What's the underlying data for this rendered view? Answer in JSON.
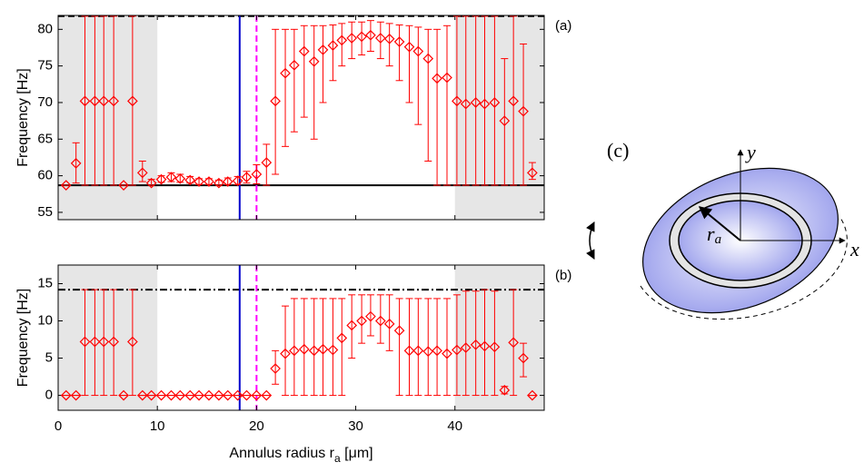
{
  "chart_data": [
    {
      "type": "errorbar",
      "ylabel": "Frequency [Hz]",
      "annotation": "(a)",
      "color": "#ff0000",
      "x": [
        0.8,
        1.8,
        2.7,
        3.7,
        4.6,
        5.6,
        6.6,
        7.5,
        8.5,
        9.4,
        10.4,
        11.4,
        12.3,
        13.3,
        14.2,
        15.2,
        16.2,
        17.1,
        18.1,
        19.0,
        20.0,
        21.0,
        21.9,
        22.9,
        23.8,
        24.8,
        25.8,
        26.7,
        27.7,
        28.6,
        29.6,
        30.6,
        31.5,
        32.5,
        33.4,
        34.4,
        35.4,
        36.3,
        37.3,
        38.2,
        39.2,
        40.2,
        41.1,
        42.1,
        43.0,
        44.0,
        45.0,
        45.9,
        46.9,
        47.8
      ],
      "values": [
        58.7,
        61.7,
        70.2,
        70.2,
        70.2,
        70.2,
        58.7,
        70.2,
        60.4,
        59.0,
        59.5,
        59.8,
        59.6,
        59.4,
        59.2,
        59.2,
        59.0,
        59.2,
        59.3,
        59.8,
        60.2,
        61.8,
        70.2,
        74,
        75.1,
        77,
        75.6,
        77.2,
        77.8,
        78.5,
        78.8,
        79,
        79.2,
        78.8,
        78.7,
        78.3,
        77.6,
        77,
        76,
        73.3,
        73.4,
        70.2,
        69.8,
        70,
        69.8,
        70,
        67.5,
        70.2,
        68.8,
        60.4
      ],
      "err_low": [
        58.7,
        59.0,
        58.7,
        58.7,
        58.7,
        58.7,
        58.7,
        58.7,
        59.2,
        58.7,
        59.1,
        59.2,
        59.1,
        59.0,
        58.8,
        58.8,
        58.7,
        58.8,
        58.8,
        59.0,
        58.9,
        58.7,
        60.2,
        64,
        66,
        68,
        65,
        70,
        73,
        75,
        76,
        76.5,
        77,
        76,
        75,
        73,
        70,
        67,
        62,
        58.7,
        58.7,
        58.7,
        58.7,
        58.7,
        58.7,
        58.7,
        58.7,
        58.7,
        58.7,
        59.5
      ],
      "err_high": [
        58.7,
        64.5,
        81.8,
        81.8,
        81.8,
        81.8,
        58.7,
        81.8,
        62,
        59.5,
        60.0,
        60.4,
        60.2,
        59.9,
        59.6,
        59.6,
        59.4,
        59.7,
        59.9,
        60.6,
        61.5,
        64.3,
        80,
        80,
        80,
        80.5,
        80.5,
        80.5,
        80.6,
        80.8,
        81,
        81,
        81.2,
        81,
        80.8,
        80.6,
        80.5,
        80.3,
        80,
        80,
        80.5,
        81.8,
        81.8,
        81.8,
        81.8,
        81.8,
        76,
        81.8,
        78,
        61.8
      ],
      "xlim": [
        0,
        49
      ],
      "xticks": [
        0,
        10,
        20,
        30,
        40
      ],
      "show_xtick_labels": false,
      "ylim": [
        54,
        81.9
      ],
      "yticks": [
        55,
        60,
        65,
        70,
        75,
        80
      ],
      "shaded": [
        [
          0,
          10
        ],
        [
          40,
          49
        ]
      ],
      "hlines": [
        {
          "value": 81.8,
          "style": "dashed",
          "color": "#000000"
        },
        {
          "value": 58.7,
          "style": "solid",
          "color": "#000000"
        }
      ],
      "vlines": [
        {
          "value": 18.3,
          "style": "solid",
          "color": "#0000cc"
        },
        {
          "value": 20.0,
          "style": "dashed",
          "color": "#ff00ff"
        }
      ]
    },
    {
      "type": "errorbar",
      "ylabel": "Frequency [Hz]",
      "annotation": "(b)",
      "color": "#ff0000",
      "xlabel": [
        "Annulus radius r",
        "a",
        " [μm]"
      ],
      "x": [
        0.8,
        1.8,
        2.7,
        3.7,
        4.6,
        5.6,
        6.6,
        7.5,
        8.5,
        9.4,
        10.4,
        11.4,
        12.3,
        13.3,
        14.2,
        15.2,
        16.2,
        17.1,
        18.1,
        19.0,
        20.0,
        21.0,
        21.9,
        22.9,
        23.8,
        24.8,
        25.8,
        26.7,
        27.7,
        28.6,
        29.6,
        30.6,
        31.5,
        32.5,
        33.4,
        34.4,
        35.4,
        36.3,
        37.3,
        38.2,
        39.2,
        40.2,
        41.1,
        42.1,
        43.0,
        44.0,
        45.0,
        45.9,
        46.9,
        47.8
      ],
      "values": [
        0,
        0,
        7.2,
        7.2,
        7.2,
        7.2,
        0,
        7.2,
        0,
        0,
        0,
        0,
        0,
        0,
        0,
        0,
        0,
        0,
        0,
        0,
        0,
        0,
        3.6,
        5.6,
        6,
        6.2,
        6,
        6.2,
        6.1,
        7.7,
        9.4,
        10,
        10.6,
        10,
        9.6,
        8.7,
        6,
        6,
        5.9,
        6,
        5.6,
        6.1,
        6.4,
        6.8,
        6.6,
        6.5,
        0.7,
        7.1,
        5,
        0
      ],
      "err_low": [
        0,
        0,
        0,
        0,
        0,
        0,
        0,
        0,
        0,
        0,
        0,
        0,
        0,
        0,
        0,
        0,
        0,
        0,
        0,
        0,
        0,
        0,
        1.5,
        0,
        0,
        0,
        0,
        0,
        0,
        0,
        5,
        7,
        8,
        7,
        6,
        0,
        0,
        0,
        0,
        0,
        0,
        0,
        0,
        0,
        0,
        0,
        0.2,
        0,
        2.5,
        0
      ],
      "err_high": [
        0,
        0,
        14.2,
        14.2,
        14.2,
        14.2,
        0,
        14.2,
        0,
        0,
        0,
        0,
        0,
        0,
        0,
        0,
        0,
        0,
        0,
        0,
        0,
        0,
        6,
        12,
        13,
        13,
        13,
        13,
        13,
        13,
        13.5,
        13.5,
        13.5,
        13.5,
        13.5,
        13,
        13,
        13,
        13,
        13,
        13,
        13.5,
        14,
        14,
        14.2,
        14,
        1.2,
        14.2,
        7,
        0
      ],
      "xlim": [
        0,
        49
      ],
      "xticks": [
        0,
        10,
        20,
        30,
        40
      ],
      "show_xtick_labels": true,
      "ylim": [
        -2,
        17.5
      ],
      "yticks": [
        0,
        5,
        10,
        15
      ],
      "shaded": [
        [
          0,
          10
        ],
        [
          40,
          49
        ]
      ],
      "hlines": [
        {
          "value": 14.2,
          "style": "dashdot",
          "color": "#000000"
        }
      ],
      "vlines": [
        {
          "value": 18.3,
          "style": "solid",
          "color": "#0000cc"
        },
        {
          "value": 20.0,
          "style": "dashed",
          "color": "#ff00ff"
        }
      ]
    }
  ],
  "diagram": {
    "label": "(c)",
    "x_axis": "x",
    "y_axis": "y",
    "radius": [
      "r",
      "a"
    ]
  }
}
